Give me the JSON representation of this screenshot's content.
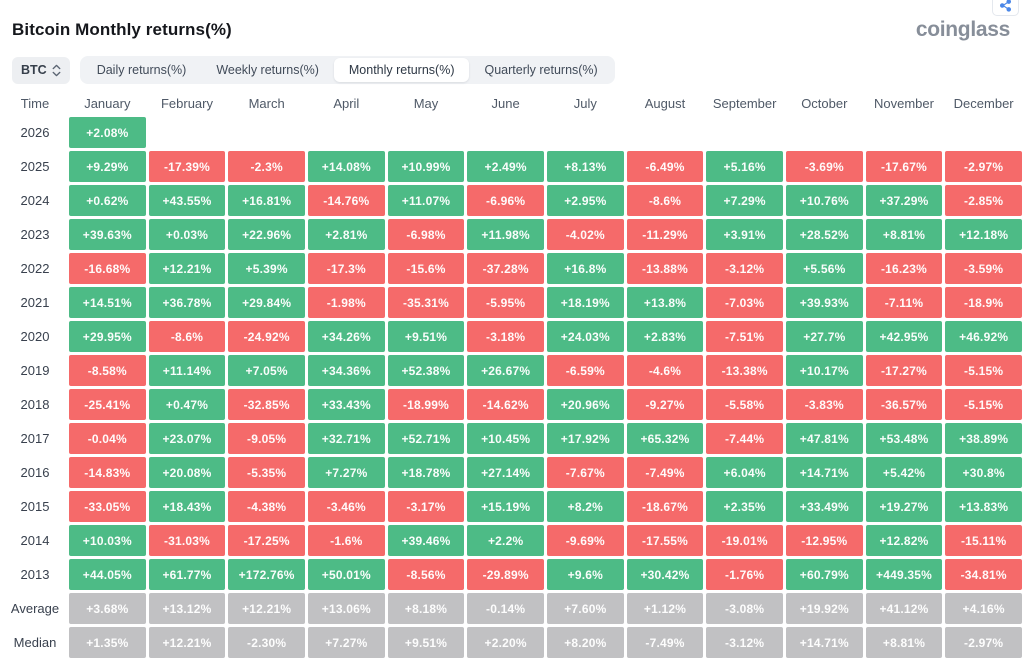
{
  "header": {
    "title": "Bitcoin Monthly returns(%)",
    "logo": "coinglass"
  },
  "controls": {
    "coin_selector": "BTC",
    "tabs": [
      {
        "label": "Daily returns(%)",
        "active": false
      },
      {
        "label": "Weekly returns(%)",
        "active": false
      },
      {
        "label": "Monthly returns(%)",
        "active": true
      },
      {
        "label": "Quarterly returns(%)",
        "active": false
      }
    ]
  },
  "icons": {
    "share": "share-icon",
    "coin_sort": "updown-chevron-icon"
  },
  "colors": {
    "positive": "#4dbb86",
    "negative": "#f56a6a",
    "neutral_stat": "#c1c1c3",
    "share_blue": "#4a87e8"
  },
  "table": {
    "time_header": "Time",
    "months": [
      "January",
      "February",
      "March",
      "April",
      "May",
      "June",
      "July",
      "August",
      "September",
      "October",
      "November",
      "December"
    ],
    "rows": [
      {
        "label": "2026",
        "type": "year",
        "values": [
          "+2.08%",
          "",
          "",
          "",
          "",
          "",
          "",
          "",
          "",
          "",
          "",
          ""
        ]
      },
      {
        "label": "2025",
        "type": "year",
        "values": [
          "+9.29%",
          "-17.39%",
          "-2.3%",
          "+14.08%",
          "+10.99%",
          "+2.49%",
          "+8.13%",
          "-6.49%",
          "+5.16%",
          "-3.69%",
          "-17.67%",
          "-2.97%"
        ]
      },
      {
        "label": "2024",
        "type": "year",
        "values": [
          "+0.62%",
          "+43.55%",
          "+16.81%",
          "-14.76%",
          "+11.07%",
          "-6.96%",
          "+2.95%",
          "-8.6%",
          "+7.29%",
          "+10.76%",
          "+37.29%",
          "-2.85%"
        ]
      },
      {
        "label": "2023",
        "type": "year",
        "values": [
          "+39.63%",
          "+0.03%",
          "+22.96%",
          "+2.81%",
          "-6.98%",
          "+11.98%",
          "-4.02%",
          "-11.29%",
          "+3.91%",
          "+28.52%",
          "+8.81%",
          "+12.18%"
        ]
      },
      {
        "label": "2022",
        "type": "year",
        "values": [
          "-16.68%",
          "+12.21%",
          "+5.39%",
          "-17.3%",
          "-15.6%",
          "-37.28%",
          "+16.8%",
          "-13.88%",
          "-3.12%",
          "+5.56%",
          "-16.23%",
          "-3.59%"
        ]
      },
      {
        "label": "2021",
        "type": "year",
        "values": [
          "+14.51%",
          "+36.78%",
          "+29.84%",
          "-1.98%",
          "-35.31%",
          "-5.95%",
          "+18.19%",
          "+13.8%",
          "-7.03%",
          "+39.93%",
          "-7.11%",
          "-18.9%"
        ]
      },
      {
        "label": "2020",
        "type": "year",
        "values": [
          "+29.95%",
          "-8.6%",
          "-24.92%",
          "+34.26%",
          "+9.51%",
          "-3.18%",
          "+24.03%",
          "+2.83%",
          "-7.51%",
          "+27.7%",
          "+42.95%",
          "+46.92%"
        ]
      },
      {
        "label": "2019",
        "type": "year",
        "values": [
          "-8.58%",
          "+11.14%",
          "+7.05%",
          "+34.36%",
          "+52.38%",
          "+26.67%",
          "-6.59%",
          "-4.6%",
          "-13.38%",
          "+10.17%",
          "-17.27%",
          "-5.15%"
        ]
      },
      {
        "label": "2018",
        "type": "year",
        "values": [
          "-25.41%",
          "+0.47%",
          "-32.85%",
          "+33.43%",
          "-18.99%",
          "-14.62%",
          "+20.96%",
          "-9.27%",
          "-5.58%",
          "-3.83%",
          "-36.57%",
          "-5.15%"
        ]
      },
      {
        "label": "2017",
        "type": "year",
        "values": [
          "-0.04%",
          "+23.07%",
          "-9.05%",
          "+32.71%",
          "+52.71%",
          "+10.45%",
          "+17.92%",
          "+65.32%",
          "-7.44%",
          "+47.81%",
          "+53.48%",
          "+38.89%"
        ]
      },
      {
        "label": "2016",
        "type": "year",
        "values": [
          "-14.83%",
          "+20.08%",
          "-5.35%",
          "+7.27%",
          "+18.78%",
          "+27.14%",
          "-7.67%",
          "-7.49%",
          "+6.04%",
          "+14.71%",
          "+5.42%",
          "+30.8%"
        ]
      },
      {
        "label": "2015",
        "type": "year",
        "values": [
          "-33.05%",
          "+18.43%",
          "-4.38%",
          "-3.46%",
          "-3.17%",
          "+15.19%",
          "+8.2%",
          "-18.67%",
          "+2.35%",
          "+33.49%",
          "+19.27%",
          "+13.83%"
        ]
      },
      {
        "label": "2014",
        "type": "year",
        "values": [
          "+10.03%",
          "-31.03%",
          "-17.25%",
          "-1.6%",
          "+39.46%",
          "+2.2%",
          "-9.69%",
          "-17.55%",
          "-19.01%",
          "-12.95%",
          "+12.82%",
          "-15.11%"
        ]
      },
      {
        "label": "2013",
        "type": "year",
        "values": [
          "+44.05%",
          "+61.77%",
          "+172.76%",
          "+50.01%",
          "-8.56%",
          "-29.89%",
          "+9.6%",
          "+30.42%",
          "-1.76%",
          "+60.79%",
          "+449.35%",
          "-34.81%"
        ]
      },
      {
        "label": "Average",
        "type": "stat",
        "values": [
          "+3.68%",
          "+13.12%",
          "+12.21%",
          "+13.06%",
          "+8.18%",
          "-0.14%",
          "+7.60%",
          "+1.12%",
          "-3.08%",
          "+19.92%",
          "+41.12%",
          "+4.16%"
        ]
      },
      {
        "label": "Median",
        "type": "stat",
        "values": [
          "+1.35%",
          "+12.21%",
          "-2.30%",
          "+7.27%",
          "+9.51%",
          "+2.20%",
          "+8.20%",
          "-7.49%",
          "-3.12%",
          "+14.71%",
          "+8.81%",
          "-2.97%"
        ]
      }
    ]
  }
}
